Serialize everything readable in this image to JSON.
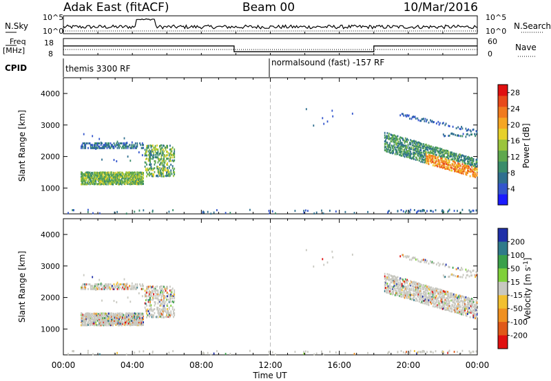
{
  "header": {
    "title_left": "Adak East (fitACF)",
    "title_center": "Beam 00",
    "title_right": "10/Mar/2016"
  },
  "labels": {
    "nsky": "N.Sky",
    "nsky_tick_top": "10^5",
    "nsky_tick_bottom": "10^0",
    "nsky_right_top": "10^5",
    "nsky_right_bottom": "10^0",
    "nsearch": "N.Search",
    "freq_line1": "Freq",
    "freq_line2": "[MHz]",
    "freq_top": "18",
    "freq_bottom": "8",
    "nave": "Nave",
    "nave_top": "60",
    "nave_bottom": "0",
    "cpid": "CPID",
    "cpid_left": "themis 3300 RF",
    "cpid_right": "normalsound (fast) -157 RF"
  },
  "chart_data": [
    {
      "type": "heatmap",
      "title": "",
      "xlabel": "",
      "ylabel": "Slant Range [km]",
      "xlim": [
        0,
        24
      ],
      "ylim": [
        180,
        4500
      ],
      "yticks": [
        1000,
        2000,
        3000,
        4000
      ],
      "colorbar": {
        "label": "Power [dB]",
        "ticks": [
          4,
          8,
          12,
          16,
          20,
          24,
          28
        ],
        "range": [
          0,
          30
        ],
        "colors": [
          "#1a1aff",
          "#3355cc",
          "#2f6f8f",
          "#3a8c6a",
          "#5fa84e",
          "#9bc43c",
          "#e6d02a",
          "#f5a623",
          "#f07a1e",
          "#e84a1a",
          "#e01010"
        ]
      },
      "features": [
        {
          "name": "early echo band",
          "t_start": 1.0,
          "t_end": 6.6,
          "range_min": 1100,
          "range_max": 2600,
          "peak_db": 20
        },
        {
          "name": "evening echo band",
          "t_start": 18.6,
          "t_end": 24.0,
          "range_min": 1200,
          "range_max": 3000,
          "peak_db": 30
        }
      ],
      "vline_time": 12.0
    },
    {
      "type": "heatmap",
      "title": "",
      "xlabel": "Time UT",
      "ylabel": "Slant Range [km]",
      "xlim": [
        0,
        24
      ],
      "ylim": [
        180,
        4500
      ],
      "yticks": [
        1000,
        2000,
        3000,
        4000
      ],
      "xticks": [
        "00:00",
        "04:00",
        "08:00",
        "12:00",
        "16:00",
        "20:00",
        "00:00"
      ],
      "colorbar": {
        "label": "Velocity [m s^-1]",
        "ticks": [
          200,
          100,
          50,
          15,
          -15,
          -50,
          -100,
          -200
        ],
        "colors": [
          "#1f2fa8",
          "#2f7a8a",
          "#3aa04a",
          "#7fd03a",
          "#c8c8c0",
          "#f2c030",
          "#f09020",
          "#e05818",
          "#e01010"
        ]
      },
      "vline_time": 12.0
    }
  ],
  "timeseries": {
    "nsky_level": 0.45,
    "freq_segments": [
      {
        "t_start": 0.0,
        "t_end": 9.9,
        "mhz": 13.5
      },
      {
        "t_start": 9.9,
        "t_end": 18.0,
        "mhz": 10.0
      },
      {
        "t_start": 18.0,
        "t_end": 24.0,
        "mhz": 13.5
      }
    ],
    "cpid_change_time": 12.0
  }
}
